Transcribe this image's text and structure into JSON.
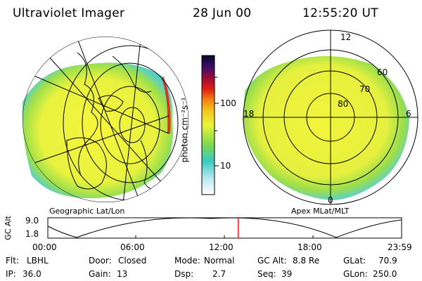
{
  "header": {
    "title": "Ultraviolet Imager",
    "date": "28 Jun 00",
    "time": "12:55:20 UT"
  },
  "left_panel": {
    "caption": "Geographic Lat/Lon"
  },
  "right_panel": {
    "caption": "Apex MLat/MLT",
    "mlt_labels": {
      "top": "12",
      "left": "18",
      "right": "6",
      "bottom": "0"
    },
    "lat_labels": [
      "60",
      "70",
      "80"
    ]
  },
  "colorbar": {
    "unit_label": "photon cm⁻²s⁻¹",
    "ticks": [
      "100",
      "10"
    ]
  },
  "altitude_plot": {
    "ylabel": "GC Alt",
    "y_ticks": [
      "9.0",
      "1.8"
    ],
    "x_ticks": [
      "00:00",
      "06:00",
      "12:00",
      "18:00",
      "23:59"
    ],
    "current_time_hours": 12.92
  },
  "info": {
    "flt_label": "Flt:",
    "flt_value": "LBHL",
    "ip_label": "IP:",
    "ip_value": "36.0",
    "door_label": "Door:",
    "door_value": "Closed",
    "gain_label": "Gain:",
    "gain_value": "13",
    "mode_label": "Mode:",
    "mode_value": "Normal",
    "dsp_label": "Dsp:",
    "dsp_value": "2.7",
    "gcalt_label": "GC Alt:",
    "gcalt_value": "8.8 Re",
    "seq_label": "Seq:",
    "seq_value": "39",
    "glat_label": "GLat:",
    "glat_value": "70.9",
    "glon_label": "GLon:",
    "glon_value": "250.0"
  },
  "colors": {
    "yellow": "#f2f43a",
    "green": "#8fe34a",
    "cyan": "#5ad1c8",
    "accent_red": "#d80000"
  }
}
